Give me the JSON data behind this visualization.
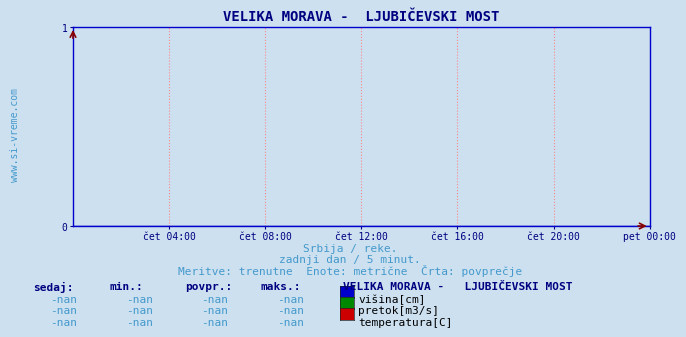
{
  "title": "VELIKA MORAVA -  LJUBIČEVSKI MOST",
  "title_color": "#000080",
  "title_fontsize": 10,
  "bg_color": "#cce0f0",
  "plot_bg_color": "#cce0f0",
  "grid_color": "#ff8888",
  "grid_style": ":",
  "axis_color": "#0000cc",
  "tick_color": "#000080",
  "tick_fontsize": 7,
  "xlim": [
    0,
    288
  ],
  "ylim": [
    0,
    1
  ],
  "yticks": [
    0,
    1
  ],
  "xtick_labels": [
    "čet 04:00",
    "čet 08:00",
    "čet 12:00",
    "čet 16:00",
    "čet 20:00",
    "pet 00:00"
  ],
  "xtick_positions": [
    48,
    96,
    144,
    192,
    240,
    288
  ],
  "subtitle_line1": "Srbija / reke.",
  "subtitle_line2": "zadnji dan / 5 minut.",
  "subtitle_line3": "Meritve: trenutne  Enote: metrične  Črta: povprečje",
  "subtitle_color": "#4499cc",
  "subtitle_fontsize": 8,
  "watermark": "www.si-vreme.com",
  "watermark_color": "#4499cc",
  "watermark_fontsize": 7,
  "table_headers": [
    "sedaj:",
    "min.:",
    "povpr.:",
    "maks.:"
  ],
  "table_header_color": "#000080",
  "table_values": [
    "-nan",
    "-nan",
    "-nan",
    "-nan"
  ],
  "table_value_color": "#4499cc",
  "legend_title": "VELIKA MORAVA -   LJUBIČEVSKI MOST",
  "legend_title_color": "#000080",
  "legend_items": [
    {
      "label": "višina[cm]",
      "color": "#0000cc"
    },
    {
      "label": "pretok[m3/s]",
      "color": "#008800"
    },
    {
      "label": "temperatura[C]",
      "color": "#cc0000"
    }
  ],
  "legend_label_color": "#000000",
  "legend_fontsize": 8,
  "arrow_color": "#880000",
  "line_color": "#0000cc",
  "line_width": 1.0
}
